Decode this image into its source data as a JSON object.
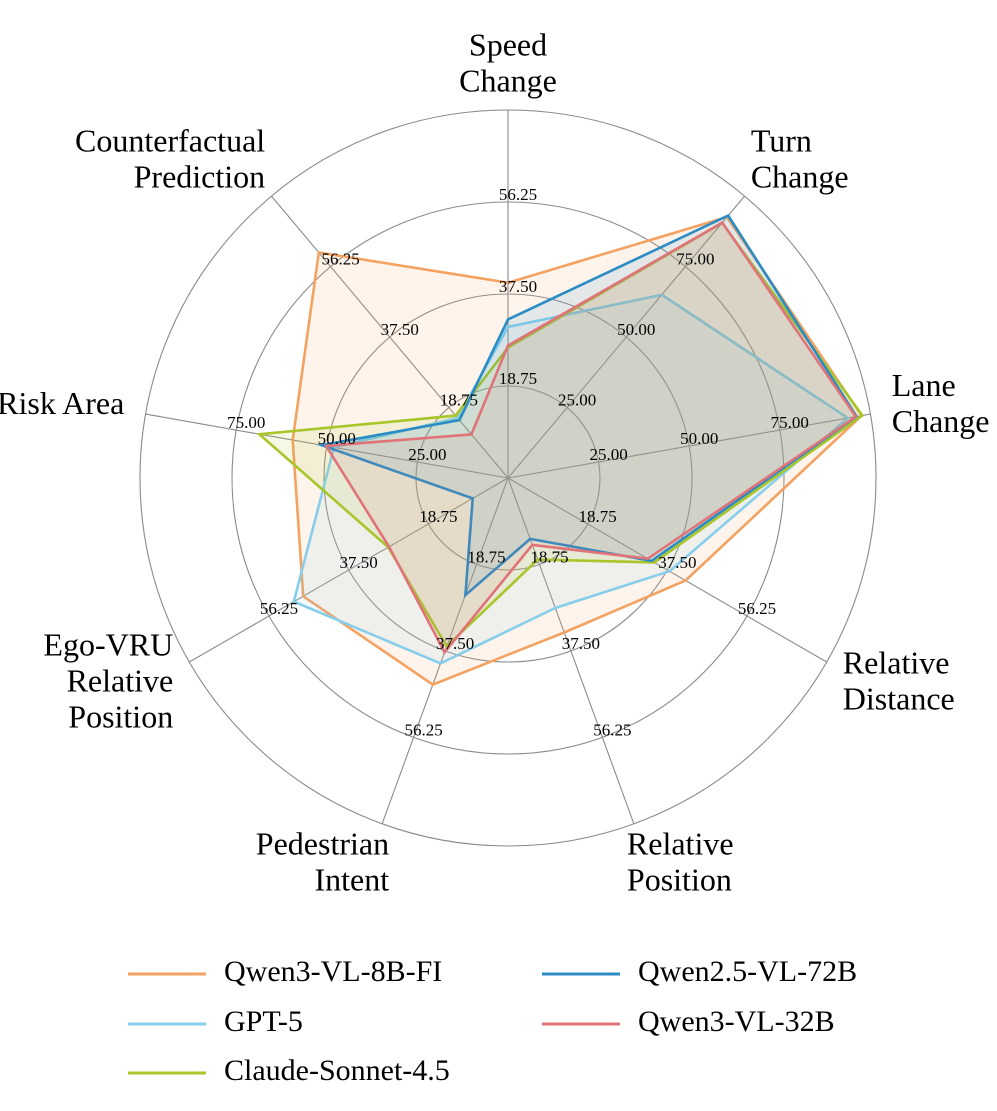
{
  "chart_data": {
    "type": "radar",
    "axes": [
      {
        "lines": [
          "Speed",
          "Change"
        ],
        "max": 75,
        "ticks": [
          "18.75",
          "37.50",
          "56.25"
        ]
      },
      {
        "lines": [
          "Turn",
          "Change"
        ],
        "max": 100,
        "ticks": [
          "25.00",
          "50.00",
          "75.00"
        ]
      },
      {
        "lines": [
          "Lane",
          "Change"
        ],
        "max": 100,
        "ticks": [
          "25.00",
          "50.00",
          "75.00"
        ]
      },
      {
        "lines": [
          "Relative",
          "Distance"
        ],
        "max": 75,
        "ticks": [
          "18.75",
          "37.50",
          "56.25"
        ]
      },
      {
        "lines": [
          "Relative",
          "Position"
        ],
        "max": 75,
        "ticks": [
          "18.75",
          "37.50",
          "56.25"
        ]
      },
      {
        "lines": [
          "Pedestrian",
          "Intent"
        ],
        "max": 75,
        "ticks": [
          "18.75",
          "37.50",
          "56.25"
        ]
      },
      {
        "lines": [
          "Ego-VRU",
          "Relative",
          "Position"
        ],
        "max": 75,
        "ticks": [
          "18.75",
          "37.50",
          "56.25"
        ]
      },
      {
        "lines": [
          "Risk Area"
        ],
        "max": 100,
        "ticks": [
          "25.00",
          "50.00",
          "75.00"
        ]
      },
      {
        "lines": [
          "Counterfactual",
          "Prediction"
        ],
        "max": 75,
        "ticks": [
          "18.75",
          "37.50",
          "56.25"
        ]
      }
    ],
    "series": [
      {
        "name": "Qwen3-VL-8B-FI",
        "color": "#F4A261",
        "values": [
          39.8,
          92.6,
          97.6,
          41.8,
          33.5,
          44.8,
          48.2,
          59.4,
          60.0
        ]
      },
      {
        "name": "GPT-5",
        "color": "#87CEEB",
        "values": [
          30.8,
          65.0,
          93.8,
          38.0,
          28.2,
          40.2,
          50.4,
          48.0,
          16.0
        ]
      },
      {
        "name": "Claude-Sonnet-4.5",
        "color": "#A8C62A",
        "values": [
          26.6,
          90.5,
          97.8,
          34.4,
          17.7,
          36.5,
          28.2,
          68.6,
          16.6
        ]
      },
      {
        "name": "Qwen2.5-VL-72B",
        "color": "#2B8CC4",
        "values": [
          32.3,
          93.1,
          96.2,
          33.8,
          13.2,
          25.4,
          8.3,
          51.4,
          15.4
        ]
      },
      {
        "name": "Qwen3-VL-32B",
        "color": "#E07378",
        "values": [
          27.0,
          90.6,
          96.0,
          32.9,
          14.5,
          37.8,
          28.0,
          50.2,
          11.6
        ]
      }
    ]
  }
}
